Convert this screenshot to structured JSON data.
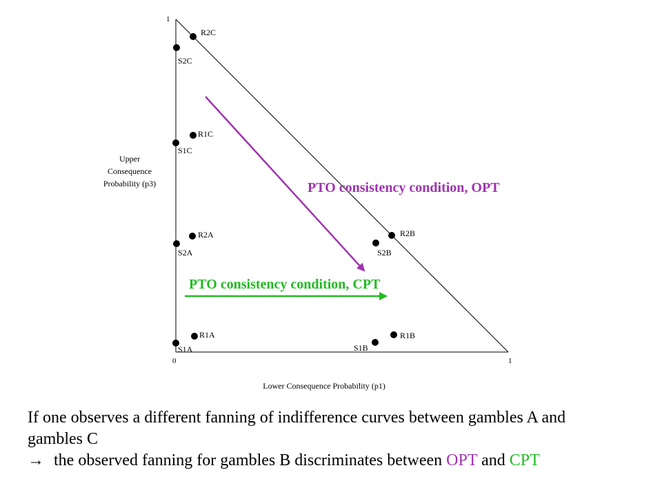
{
  "diagram": {
    "y_axis": {
      "label_lines": [
        "Upper",
        "Consequence",
        "Probability (p3)"
      ],
      "top_tick": "1"
    },
    "x_axis": {
      "label": "Lower Consequence Probability (p1)",
      "origin_tick": "0",
      "end_tick": "1"
    },
    "points": [
      {
        "label": "R2C"
      },
      {
        "label": "S2C"
      },
      {
        "label": "R1C"
      },
      {
        "label": "S1C"
      },
      {
        "label": "R2A"
      },
      {
        "label": "S2A"
      },
      {
        "label": "R2B"
      },
      {
        "label": "S2B"
      },
      {
        "label": "R1A"
      },
      {
        "label": "S1A"
      },
      {
        "label": "R1B"
      },
      {
        "label": "S1B"
      }
    ],
    "opt_arrow": {
      "label": "PTO consistency condition, OPT",
      "color": "#a033b0"
    },
    "cpt_arrow": {
      "label": "PTO consistency condition, CPT",
      "color": "#22bb22"
    }
  },
  "caption": {
    "line1": "If one observes a different fanning of indifference curves between gambles A and",
    "line2": "gambles C",
    "line3_arrow": "→",
    "line3_prefix": " the observed fanning for gambles B discriminates between ",
    "opt": "OPT",
    "and": " and ",
    "cpt": "CPT",
    "opt_color": "#a033b0",
    "cpt_color": "#22bb22"
  }
}
